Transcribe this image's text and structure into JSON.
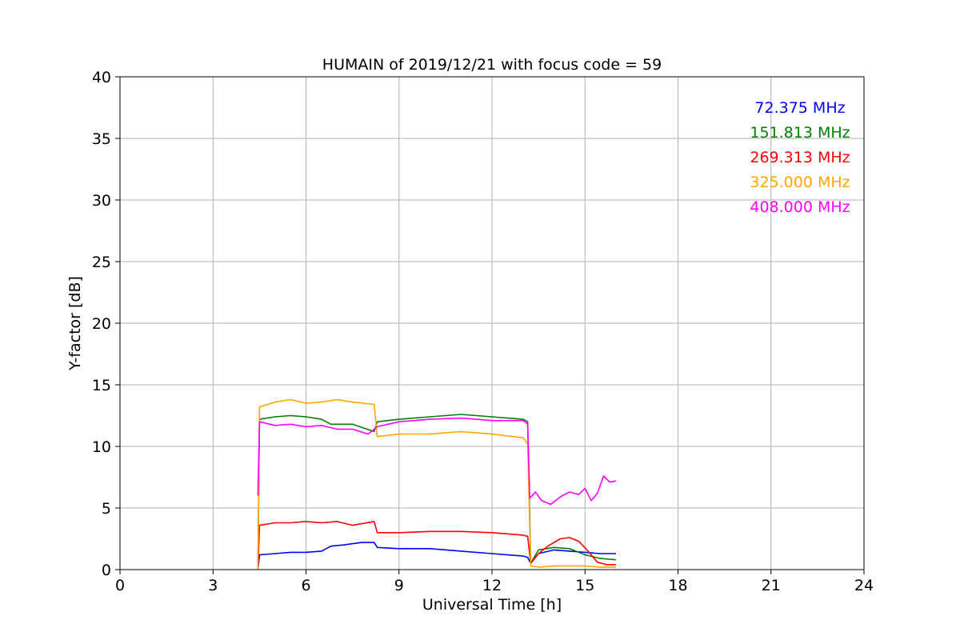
{
  "chart_data": {
    "type": "line",
    "title": "HUMAIN of 2019/12/21 with focus code = 59",
    "xlabel": "Universal Time [h]",
    "ylabel": "Y-factor [dB]",
    "xlim": [
      0,
      24
    ],
    "ylim": [
      0,
      40
    ],
    "xticks": [
      0,
      3,
      6,
      9,
      12,
      15,
      18,
      21,
      24
    ],
    "yticks": [
      0,
      5,
      10,
      15,
      20,
      25,
      30,
      35,
      40
    ],
    "grid": true,
    "legend_position": "top-right",
    "series": [
      {
        "name": "72.375 MHz",
        "color": "#0000ff",
        "points": [
          [
            4.45,
            0
          ],
          [
            4.5,
            1.2
          ],
          [
            5.0,
            1.3
          ],
          [
            5.5,
            1.4
          ],
          [
            6.0,
            1.4
          ],
          [
            6.5,
            1.5
          ],
          [
            6.8,
            1.9
          ],
          [
            7.2,
            2.0
          ],
          [
            7.8,
            2.2
          ],
          [
            8.2,
            2.2
          ],
          [
            8.3,
            1.8
          ],
          [
            9.0,
            1.7
          ],
          [
            10.0,
            1.7
          ],
          [
            11.0,
            1.5
          ],
          [
            12.0,
            1.3
          ],
          [
            13.0,
            1.1
          ],
          [
            13.15,
            1.0
          ],
          [
            13.25,
            0.5
          ],
          [
            13.5,
            1.3
          ],
          [
            14.0,
            1.6
          ],
          [
            14.5,
            1.5
          ],
          [
            15.0,
            1.4
          ],
          [
            15.5,
            1.3
          ],
          [
            16.0,
            1.3
          ]
        ]
      },
      {
        "name": "151.813 MHz",
        "color": "#008000",
        "points": [
          [
            4.45,
            0
          ],
          [
            4.5,
            12.2
          ],
          [
            5.0,
            12.4
          ],
          [
            5.5,
            12.5
          ],
          [
            6.0,
            12.4
          ],
          [
            6.5,
            12.2
          ],
          [
            6.8,
            11.8
          ],
          [
            7.5,
            11.8
          ],
          [
            8.2,
            11.2
          ],
          [
            8.3,
            12.0
          ],
          [
            9.0,
            12.2
          ],
          [
            10.0,
            12.4
          ],
          [
            11.0,
            12.6
          ],
          [
            12.0,
            12.4
          ],
          [
            13.0,
            12.2
          ],
          [
            13.15,
            12.0
          ],
          [
            13.25,
            0.5
          ],
          [
            13.5,
            1.6
          ],
          [
            14.0,
            1.8
          ],
          [
            14.5,
            1.7
          ],
          [
            15.0,
            1.2
          ],
          [
            15.5,
            0.9
          ],
          [
            16.0,
            0.8
          ]
        ]
      },
      {
        "name": "269.313 MHz",
        "color": "#ff0000",
        "points": [
          [
            4.45,
            0
          ],
          [
            4.5,
            3.6
          ],
          [
            5.0,
            3.8
          ],
          [
            5.5,
            3.8
          ],
          [
            6.0,
            3.9
          ],
          [
            6.5,
            3.8
          ],
          [
            7.0,
            3.9
          ],
          [
            7.5,
            3.6
          ],
          [
            8.2,
            3.9
          ],
          [
            8.3,
            3.0
          ],
          [
            9.0,
            3.0
          ],
          [
            10.0,
            3.1
          ],
          [
            11.0,
            3.1
          ],
          [
            12.0,
            3.0
          ],
          [
            13.0,
            2.8
          ],
          [
            13.15,
            2.7
          ],
          [
            13.25,
            0.5
          ],
          [
            13.5,
            1.3
          ],
          [
            13.8,
            1.9
          ],
          [
            14.2,
            2.5
          ],
          [
            14.5,
            2.6
          ],
          [
            14.8,
            2.3
          ],
          [
            15.1,
            1.5
          ],
          [
            15.4,
            0.6
          ],
          [
            15.7,
            0.4
          ],
          [
            16.0,
            0.4
          ]
        ]
      },
      {
        "name": "325.000 MHz",
        "color": "#ffa500",
        "points": [
          [
            4.45,
            0
          ],
          [
            4.5,
            13.2
          ],
          [
            5.0,
            13.6
          ],
          [
            5.5,
            13.8
          ],
          [
            6.0,
            13.5
          ],
          [
            6.5,
            13.6
          ],
          [
            7.0,
            13.8
          ],
          [
            7.5,
            13.6
          ],
          [
            8.2,
            13.4
          ],
          [
            8.3,
            10.8
          ],
          [
            9.0,
            11.0
          ],
          [
            10.0,
            11.0
          ],
          [
            11.0,
            11.2
          ],
          [
            12.0,
            11.0
          ],
          [
            13.0,
            10.7
          ],
          [
            13.15,
            10.2
          ],
          [
            13.25,
            0.3
          ],
          [
            13.5,
            0.2
          ],
          [
            14.0,
            0.3
          ],
          [
            14.5,
            0.3
          ],
          [
            15.0,
            0.3
          ],
          [
            15.5,
            0.2
          ],
          [
            16.0,
            0.2
          ]
        ]
      },
      {
        "name": "408.000 MHz",
        "color": "#ff00ff",
        "points": [
          [
            4.45,
            6.0
          ],
          [
            4.47,
            8.5
          ],
          [
            4.5,
            12.0
          ],
          [
            5.0,
            11.7
          ],
          [
            5.5,
            11.8
          ],
          [
            6.0,
            11.6
          ],
          [
            6.5,
            11.7
          ],
          [
            7.0,
            11.4
          ],
          [
            7.5,
            11.4
          ],
          [
            8.0,
            11.0
          ],
          [
            8.3,
            11.6
          ],
          [
            9.0,
            12.0
          ],
          [
            10.0,
            12.2
          ],
          [
            11.0,
            12.3
          ],
          [
            12.0,
            12.1
          ],
          [
            13.0,
            12.1
          ],
          [
            13.15,
            11.8
          ],
          [
            13.22,
            5.8
          ],
          [
            13.4,
            6.3
          ],
          [
            13.6,
            5.6
          ],
          [
            13.9,
            5.3
          ],
          [
            14.2,
            5.9
          ],
          [
            14.5,
            6.3
          ],
          [
            14.8,
            6.1
          ],
          [
            15.0,
            6.6
          ],
          [
            15.2,
            5.6
          ],
          [
            15.4,
            6.2
          ],
          [
            15.6,
            7.6
          ],
          [
            15.8,
            7.1
          ],
          [
            16.0,
            7.2
          ]
        ]
      }
    ]
  }
}
